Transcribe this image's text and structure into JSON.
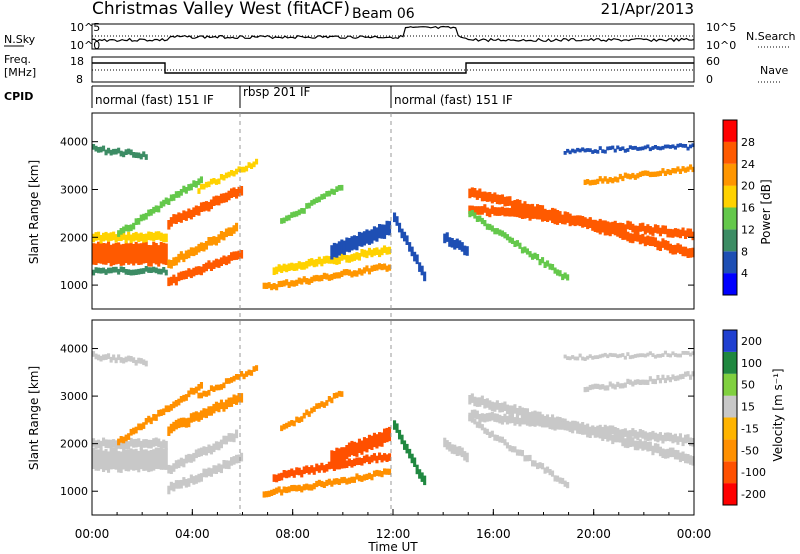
{
  "header": {
    "title": "Christmas Valley West (fitACF)",
    "beam": "Beam 06",
    "date": "21/Apr/2013"
  },
  "strip_nsky": {
    "label": "N.Sky",
    "left_ticks": [
      "10^5",
      "10^0"
    ],
    "right_ticks": [
      "10^5",
      "10^0"
    ],
    "right_label": "N.Search"
  },
  "strip_freq": {
    "label_line1": "Freq.",
    "label_line2": "[MHz]",
    "left_ticks": [
      "18",
      "8"
    ],
    "right_ticks": [
      "60",
      "0"
    ],
    "right_label": "Nave"
  },
  "cpid": {
    "label": "CPID",
    "segments": [
      {
        "label": "normal (fast) 151 IF",
        "start_h": 0,
        "end_h": 6
      },
      {
        "label": "rbsp 201 IF",
        "start_h": 6,
        "end_h": 12
      },
      {
        "label": "normal (fast) 151 IF",
        "start_h": 12,
        "end_h": 24
      }
    ]
  },
  "x_axis": {
    "label": "Time UT",
    "ticks": [
      "00:00",
      "04:00",
      "08:00",
      "12:00",
      "16:00",
      "20:00",
      "00:00"
    ]
  },
  "colors": {
    "power_scale": [
      "#0000ff",
      "#1e4fb4",
      "#3c8c64",
      "#64c84b",
      "#ffd200",
      "#ff9600",
      "#ff5a00",
      "#ff0000"
    ],
    "velocity_scale": [
      "#ff0000",
      "#ff5000",
      "#ff9000",
      "#ffb400",
      "#c8c8c8",
      "#80d040",
      "#208840",
      "#2040d0"
    ],
    "ground_scatter": "#c0c0c0"
  },
  "chart_data": [
    {
      "type": "heatmap",
      "name": "power",
      "ylabel": "Slant Range [km]",
      "yticks": [
        "1000",
        "2000",
        "3000",
        "4000"
      ],
      "ylim": [
        500,
        4600
      ],
      "xlim_hours": [
        0,
        24
      ],
      "colorbar": {
        "label": "Power [dB]",
        "ticks": [
          "4",
          "8",
          "12",
          "16",
          "20",
          "24",
          "28"
        ],
        "range": [
          0,
          32
        ]
      },
      "bands": [
        {
          "t0": 0.0,
          "t1": 3.0,
          "r0": 1650,
          "r1": 1650,
          "w": 450,
          "v": 24
        },
        {
          "t0": 0.0,
          "t1": 3.0,
          "r0": 2000,
          "r1": 2000,
          "w": 180,
          "v": 16
        },
        {
          "t0": 0.0,
          "t1": 3.0,
          "r0": 1300,
          "r1": 1300,
          "w": 120,
          "v": 10
        },
        {
          "t0": 0.0,
          "t1": 2.2,
          "r0": 3850,
          "r1": 3700,
          "w": 120,
          "v": 8
        },
        {
          "t0": 1.0,
          "t1": 4.4,
          "r0": 2050,
          "r1": 3250,
          "w": 140,
          "v": 14
        },
        {
          "t0": 3.0,
          "t1": 6.0,
          "r0": 1050,
          "r1": 1700,
          "w": 180,
          "v": 26
        },
        {
          "t0": 3.0,
          "t1": 5.8,
          "r0": 1450,
          "r1": 2200,
          "w": 180,
          "v": 22
        },
        {
          "t0": 3.0,
          "t1": 6.0,
          "r0": 2300,
          "r1": 3000,
          "w": 200,
          "v": 26
        },
        {
          "t0": 4.2,
          "t1": 6.6,
          "r0": 3000,
          "r1": 3600,
          "w": 120,
          "v": 18
        },
        {
          "t0": 6.8,
          "t1": 11.9,
          "r0": 950,
          "r1": 1400,
          "w": 130,
          "v": 22
        },
        {
          "t0": 7.2,
          "t1": 11.9,
          "r0": 1300,
          "r1": 1750,
          "w": 160,
          "v": 18
        },
        {
          "t0": 7.5,
          "t1": 10.0,
          "r0": 2300,
          "r1": 3100,
          "w": 120,
          "v": 12
        },
        {
          "t0": 9.5,
          "t1": 11.9,
          "r0": 1700,
          "r1": 2200,
          "w": 300,
          "v": 7
        },
        {
          "t0": 12.0,
          "t1": 13.3,
          "r0": 2400,
          "r1": 1100,
          "w": 200,
          "v": 7
        },
        {
          "t0": 14.0,
          "t1": 15.0,
          "r0": 2000,
          "r1": 1700,
          "w": 200,
          "v": 6
        },
        {
          "t0": 15.0,
          "t1": 24.0,
          "r0": 2950,
          "r1": 1650,
          "w": 200,
          "v": 27
        },
        {
          "t0": 15.0,
          "t1": 24.0,
          "r0": 2600,
          "r1": 2050,
          "w": 180,
          "v": 24
        },
        {
          "t0": 15.0,
          "t1": 19.0,
          "r0": 2500,
          "r1": 1100,
          "w": 130,
          "v": 14
        },
        {
          "t0": 19.6,
          "t1": 24.0,
          "r0": 3150,
          "r1": 3450,
          "w": 110,
          "v": 20
        },
        {
          "t0": 18.8,
          "t1": 24.0,
          "r0": 3800,
          "r1": 3900,
          "w": 80,
          "v": 6
        }
      ]
    },
    {
      "type": "heatmap",
      "name": "velocity",
      "ylabel": "Slant Range [km]",
      "yticks": [
        "1000",
        "2000",
        "3000",
        "4000"
      ],
      "ylim": [
        500,
        4600
      ],
      "xlim_hours": [
        0,
        24
      ],
      "colorbar": {
        "label": "Velocity [m s⁻¹]",
        "ticks": [
          "200",
          "100",
          "50",
          "15",
          "-15",
          "-50",
          "-100",
          "-200"
        ],
        "range": [
          -250,
          250
        ]
      },
      "bands": [
        {
          "t0": 0.0,
          "t1": 3.0,
          "r0": 1650,
          "r1": 1650,
          "w": 450,
          "v": 0
        },
        {
          "t0": 0.0,
          "t1": 3.0,
          "r0": 2000,
          "r1": 2000,
          "w": 180,
          "v": 0
        },
        {
          "t0": 0.0,
          "t1": 2.2,
          "r0": 3850,
          "r1": 3700,
          "w": 120,
          "v": 0
        },
        {
          "t0": 1.0,
          "t1": 4.4,
          "r0": 2050,
          "r1": 3250,
          "w": 140,
          "v": -60
        },
        {
          "t0": 3.0,
          "t1": 6.0,
          "r0": 1050,
          "r1": 1700,
          "w": 180,
          "v": 0
        },
        {
          "t0": 3.0,
          "t1": 5.8,
          "r0": 1450,
          "r1": 2200,
          "w": 180,
          "v": 0
        },
        {
          "t0": 3.0,
          "t1": 6.0,
          "r0": 2300,
          "r1": 3000,
          "w": 200,
          "v": -60
        },
        {
          "t0": 4.2,
          "t1": 6.6,
          "r0": 3000,
          "r1": 3600,
          "w": 120,
          "v": -40
        },
        {
          "t0": 6.8,
          "t1": 11.9,
          "r0": 950,
          "r1": 1400,
          "w": 130,
          "v": -70
        },
        {
          "t0": 7.2,
          "t1": 11.9,
          "r0": 1300,
          "r1": 1750,
          "w": 160,
          "v": -80
        },
        {
          "t0": 7.5,
          "t1": 10.0,
          "r0": 2300,
          "r1": 3100,
          "w": 120,
          "v": -60
        },
        {
          "t0": 9.5,
          "t1": 11.9,
          "r0": 1700,
          "r1": 2200,
          "w": 300,
          "v": -80
        },
        {
          "t0": 12.0,
          "t1": 13.3,
          "r0": 2400,
          "r1": 1100,
          "w": 200,
          "v": 60
        },
        {
          "t0": 14.0,
          "t1": 15.0,
          "r0": 2000,
          "r1": 1700,
          "w": 200,
          "v": 0
        },
        {
          "t0": 15.0,
          "t1": 24.0,
          "r0": 2950,
          "r1": 1650,
          "w": 200,
          "v": 0
        },
        {
          "t0": 15.0,
          "t1": 24.0,
          "r0": 2600,
          "r1": 2050,
          "w": 180,
          "v": 0
        },
        {
          "t0": 15.0,
          "t1": 19.0,
          "r0": 2500,
          "r1": 1100,
          "w": 130,
          "v": 0
        },
        {
          "t0": 19.6,
          "t1": 24.0,
          "r0": 3150,
          "r1": 3450,
          "w": 110,
          "v": 0
        },
        {
          "t0": 18.8,
          "t1": 24.0,
          "r0": 3800,
          "r1": 3900,
          "w": 80,
          "v": 0
        }
      ]
    }
  ]
}
